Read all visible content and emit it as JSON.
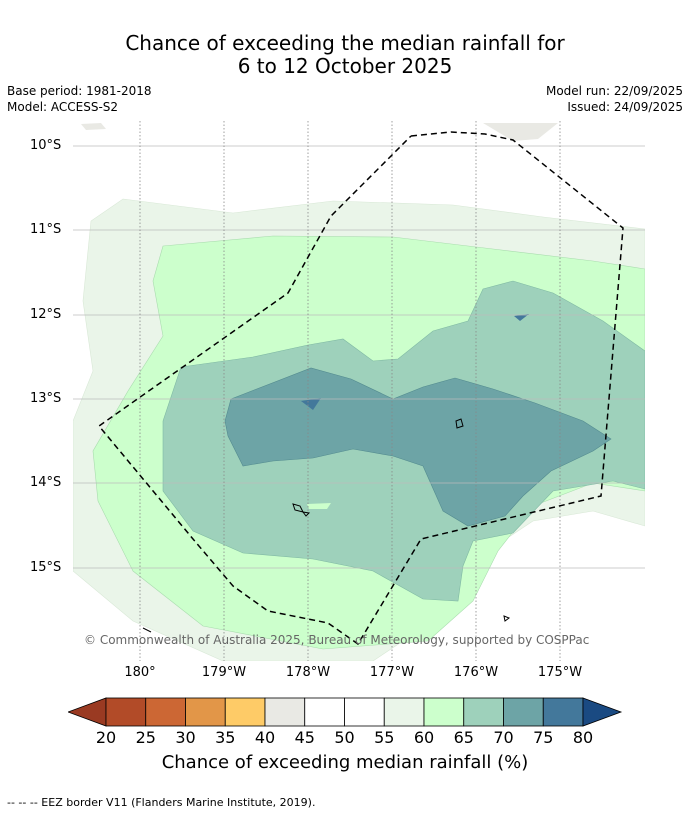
{
  "title": {
    "line1": "Chance of exceeding the median rainfall for",
    "line2": "6 to 12 October 2025"
  },
  "meta_left": {
    "base_period": "Base period: 1981-2018",
    "model": "Model: ACCESS-S2"
  },
  "meta_right": {
    "model_run": "Model run: 22/09/2025",
    "issued": "Issued: 24/09/2025"
  },
  "map": {
    "lat_labels": [
      "10°S",
      "11°S",
      "12°S",
      "13°S",
      "14°S",
      "15°S"
    ],
    "lon_labels": [
      "180°",
      "179°W",
      "178°W",
      "177°W",
      "176°W",
      "175°W"
    ],
    "copyright": "© Commonwealth of Australia 2025, Bureau of Meteorology, supported by COSPPac"
  },
  "colorbar": {
    "ticks": [
      "20",
      "25",
      "30",
      "35",
      "40",
      "45",
      "50",
      "55",
      "60",
      "65",
      "70",
      "75",
      "80"
    ],
    "colors": [
      "#b24b28",
      "#cc6734",
      "#e29648",
      "#fecb67",
      "#e9e9e4",
      "#ffffff",
      "#ffffff",
      "#eaf5e9",
      "#ccffcc",
      "#9ed1bb",
      "#6da4a6",
      "#43789b"
    ],
    "under_color": "#9a3a22",
    "over_color": "#1a4a82",
    "title": "Chance of exceeding median rainfall (%)"
  },
  "eez_note": "--  --  -- EEZ border V11 (Flanders Marine Institute, 2019).",
  "zone_colors": {
    "near_median": "#eaf5e9",
    "light_green": "#ccffcc",
    "mid_teal": "#9ed1bb",
    "dark_teal": "#6da4a6",
    "deep_blue": "#43789b"
  }
}
